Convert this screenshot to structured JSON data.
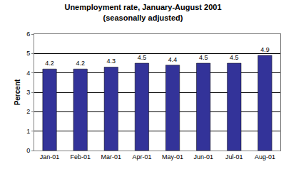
{
  "chart_data": {
    "type": "bar",
    "title": "Unemployment rate, January-August 2001",
    "subtitle": "(seasonally adjusted)",
    "y_label": "Percent",
    "categories": [
      "Jan-01",
      "Feb-01",
      "Mar-01",
      "Apr-01",
      "May-01",
      "Jun-01",
      "Jul-01",
      "Aug-01"
    ],
    "values": [
      4.2,
      4.2,
      4.3,
      4.5,
      4.4,
      4.5,
      4.5,
      4.9
    ],
    "color": "#333399",
    "ylim": [
      0,
      6
    ],
    "yticks": [
      0,
      1,
      2,
      3,
      4,
      5,
      6
    ],
    "grid": true,
    "data_labels": true
  }
}
